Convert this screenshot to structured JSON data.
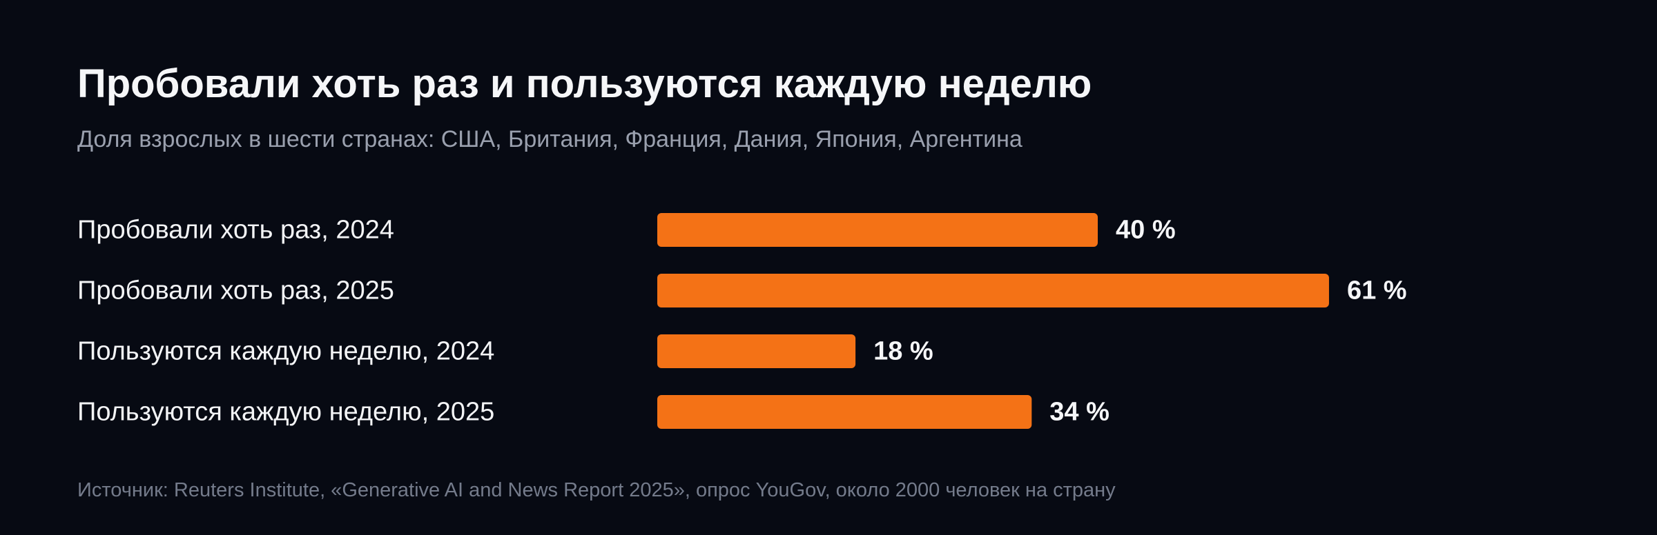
{
  "chart_data": {
    "type": "bar",
    "orientation": "horizontal",
    "title": "Пробовали хоть раз и пользуются каждую неделю",
    "subtitle": "Доля взрослых в шести странах: США, Британия, Франция, Дания, Япония, Аргентина",
    "categories": [
      "Пробовали хоть раз, 2024",
      "Пробовали хоть раз, 2025",
      "Пользуются каждую неделю, 2024",
      "Пользуются каждую неделю, 2025"
    ],
    "values": [
      40,
      61,
      18,
      34
    ],
    "value_labels": [
      "40 %",
      "61 %",
      "18 %",
      "34 %"
    ],
    "unit": "%",
    "xlim": [
      0,
      100
    ],
    "grid": false,
    "legend": "none",
    "source": "Источник: Reuters Institute, «Generative AI and News Report 2025», опрос YouGov, около 2000 человек на страну"
  },
  "colors": {
    "background": "#070a13",
    "bar": "#f47216",
    "title": "#f5f6f8",
    "subtitle": "#9aa0ae",
    "source": "#747b8b"
  }
}
